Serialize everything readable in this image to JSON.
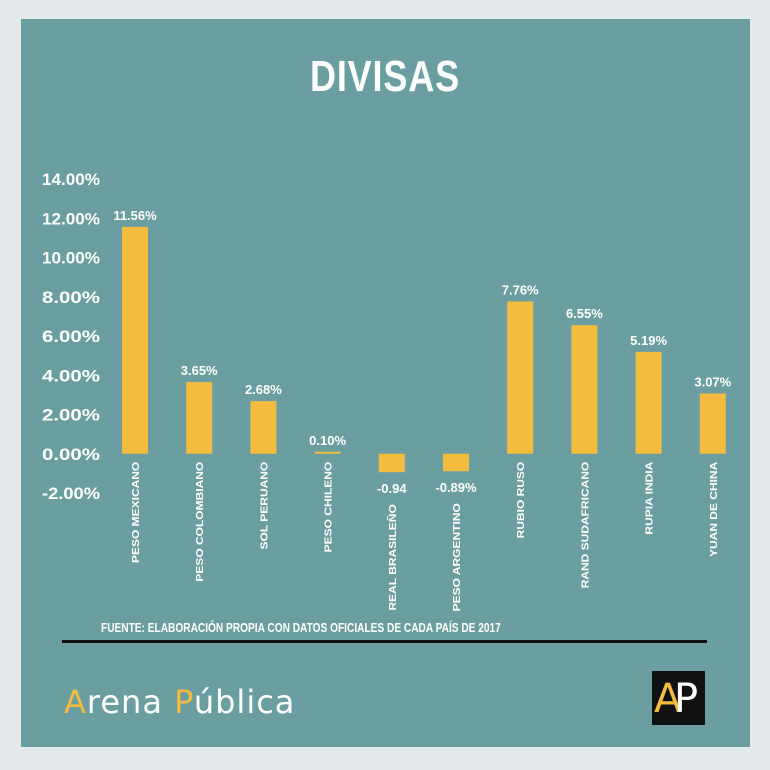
{
  "colors": {
    "background": "#6b9ea0",
    "bar": "#f3bc3e",
    "text": "#ffffff",
    "rule": "#111111"
  },
  "chart_data": {
    "type": "bar",
    "title": "DIVISAS",
    "categories": [
      "PESO MEXICANO",
      "PESO COLOMBIANO",
      "SOL PERUANO",
      "PESO CHILENO",
      "REAL BRASILEÑO",
      "PESO ARGENTINO",
      "RUBIO RUSO",
      "RAND SUDAFRICANO",
      "RUPIA INDIA",
      "YUAN DE CHINA"
    ],
    "values": [
      11.56,
      3.65,
      2.68,
      0.1,
      -0.94,
      -0.89,
      7.76,
      6.55,
      5.19,
      3.07
    ],
    "data_labels": [
      "11.56%",
      "3.65%",
      "2.68%",
      "0.10%",
      "-0.94",
      "-0.89%",
      "7.76%",
      "6.55%",
      "5.19%",
      "3.07%"
    ],
    "y_ticks": [
      "14.00%",
      "12.00%",
      "10.00%",
      "8.00%",
      "6.00%",
      "4.00%",
      "2.00%",
      "0.00%",
      "-2.00%"
    ],
    "y_tick_values": [
      14,
      12,
      10,
      8,
      6,
      4,
      2,
      0,
      -2
    ],
    "ylim": [
      -2,
      14
    ],
    "grid": false,
    "legend": "none"
  },
  "source_text": "FUENTE: ELABORACIÓN PROPIA CON DATOS OFICIALES DE CADA PAÍS  DE 2017",
  "brand": {
    "name_first_letter": "A",
    "name_rest_1": "rena ",
    "name_second_letter": "P",
    "name_rest_2": "ública",
    "logo_letter_1": "A",
    "logo_letter_2": "P"
  }
}
